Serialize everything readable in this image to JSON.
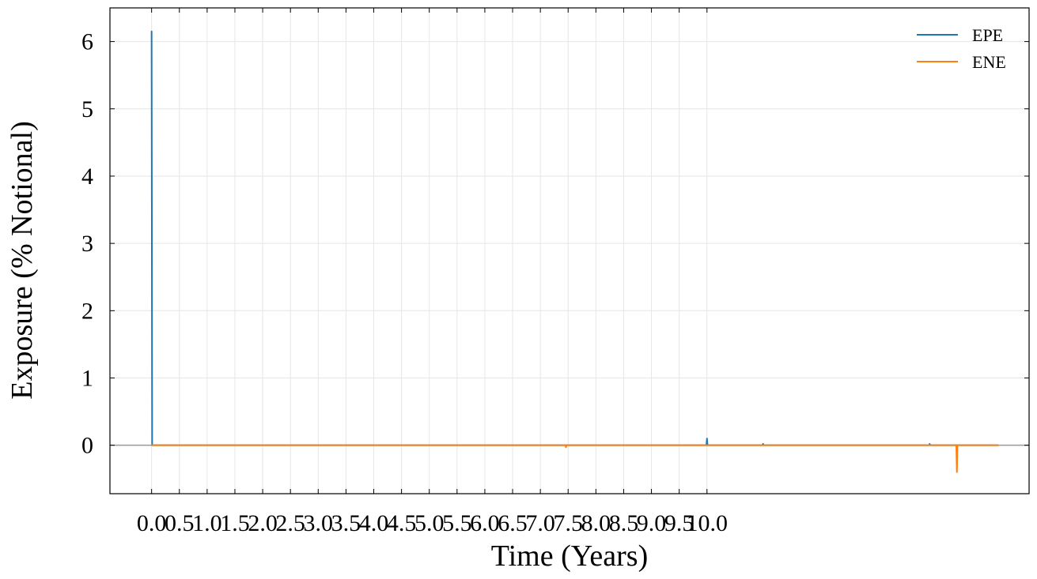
{
  "chart_data": {
    "type": "line",
    "xlabel": "Time (Years)",
    "ylabel": "Exposure (% Notional)",
    "xlim": [
      -0.75,
      15.8
    ],
    "ylim": [
      -0.72,
      6.5
    ],
    "x_ticks": [
      0.0,
      0.5,
      1.0,
      1.5,
      2.0,
      2.5,
      3.0,
      3.5,
      4.0,
      4.5,
      5.0,
      5.5,
      6.0,
      6.5,
      7.0,
      7.5,
      8.0,
      8.5,
      9.0,
      9.5,
      10.0
    ],
    "x_tick_labels": [
      "0.0",
      "0.5",
      "1.0",
      "1.5",
      "2.0",
      "2.5",
      "3.0",
      "3.5",
      "4.0",
      "4.5",
      "5.0",
      "5.5",
      "6.0",
      "6.5",
      "7.0",
      "7.5",
      "8.0",
      "8.5",
      "9.0",
      "9.5",
      "10.0"
    ],
    "y_ticks": [
      0,
      1,
      2,
      3,
      4,
      5,
      6
    ],
    "y_tick_labels": [
      "0",
      "1",
      "2",
      "3",
      "4",
      "5",
      "6"
    ],
    "grid": true,
    "zero_line": true,
    "legend": "top-right",
    "series": [
      {
        "name": "EPE",
        "color": "#1f77b4",
        "x": [
          0.0,
          0.0,
          0.01,
          0.02,
          0.5,
          1.0,
          2.0,
          3.0,
          4.0,
          5.0,
          6.0,
          7.0,
          7.5,
          8.0,
          9.0,
          9.99,
          10.0,
          10.01,
          11.0,
          11.01,
          11.02,
          12.0,
          13.0,
          14.0,
          14.01,
          14.02,
          15.0,
          15.25
        ],
        "y": [
          6.05,
          6.15,
          0.0,
          0.0,
          0.0,
          0.0,
          0.0,
          0.0,
          0.0,
          0.0,
          0.0,
          0.0,
          0.0,
          0.0,
          0.0,
          0.0,
          0.1,
          0.0,
          0.0,
          0.02,
          0.0,
          0.0,
          0.0,
          0.0,
          0.02,
          0.0,
          0.0,
          0.0
        ]
      },
      {
        "name": "ENE",
        "color": "#ff7f0e",
        "x": [
          0.0,
          0.5,
          1.0,
          2.0,
          3.0,
          4.0,
          5.0,
          6.0,
          7.0,
          7.45,
          7.46,
          7.47,
          8.0,
          9.0,
          10.0,
          11.0,
          12.0,
          13.0,
          14.0,
          14.49,
          14.5,
          14.51,
          15.0,
          15.25
        ],
        "y": [
          0.0,
          0.0,
          0.0,
          0.0,
          0.0,
          0.0,
          0.0,
          0.0,
          0.0,
          0.0,
          -0.03,
          0.0,
          0.0,
          0.0,
          0.0,
          0.0,
          0.0,
          0.0,
          0.0,
          0.0,
          -0.4,
          0.0,
          0.0,
          0.0
        ]
      }
    ]
  }
}
